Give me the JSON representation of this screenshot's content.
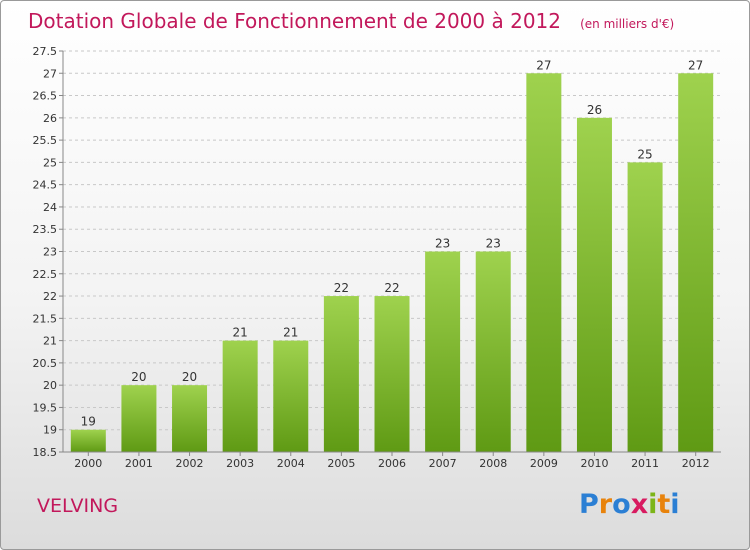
{
  "header": {
    "title": "Dotation Globale de Fonctionnement de 2000 à 2012",
    "subtitle": "(en milliers d'€)"
  },
  "footer": {
    "commune": "VELVING",
    "logo_text": "Proxiti"
  },
  "colors": {
    "title": "#c2185b",
    "bar_top": "#9fd24e",
    "bar_bottom": "#5f9a14",
    "grid": "#c8c8c8"
  },
  "chart_data": {
    "type": "bar",
    "title": "Dotation Globale de Fonctionnement de 2000 à 2012",
    "subtitle": "(en milliers d'€)",
    "xlabel": "",
    "ylabel": "",
    "categories": [
      "2000",
      "2001",
      "2002",
      "2003",
      "2004",
      "2005",
      "2006",
      "2007",
      "2008",
      "2009",
      "2010",
      "2011",
      "2012"
    ],
    "values": [
      19,
      20,
      20,
      21,
      21,
      22,
      22,
      23,
      23,
      27,
      26,
      25,
      27
    ],
    "data_labels": [
      "19",
      "20",
      "20",
      "21",
      "21",
      "22",
      "22",
      "23",
      "23",
      "27",
      "26",
      "25",
      "27"
    ],
    "ylim": [
      18.5,
      27.5
    ],
    "yticks": [
      "18.5",
      "19",
      "19.5",
      "20",
      "20.5",
      "21",
      "21.5",
      "22",
      "22.5",
      "23",
      "23.5",
      "24",
      "24.5",
      "25",
      "25.5",
      "26",
      "26.5",
      "27",
      "27.5"
    ],
    "grid": true
  }
}
